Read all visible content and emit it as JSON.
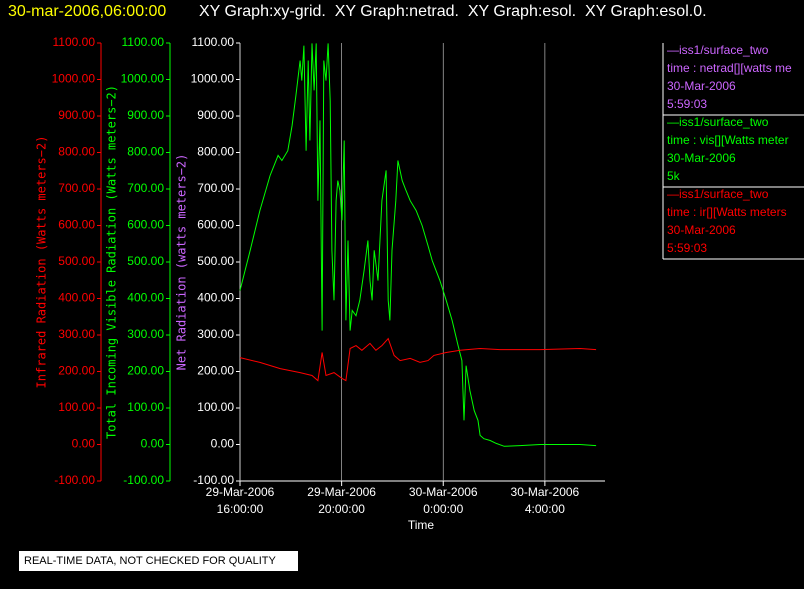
{
  "chart_data": {
    "type": "line",
    "title_time": "30-mar-2006,06:00:00",
    "title": "XY Graph:xy-grid.  XY Graph:netrad.  XY Graph:esol.  XY Graph:esol.0.",
    "xlabel": "Time",
    "note": "REAL-TIME DATA, NOT CHECKED FOR QUALITY",
    "grid": true,
    "xlim": [
      "2006-03-29 16:00",
      "2006-03-30 06:22"
    ],
    "xticks": [
      {
        "value": "2006-03-29 16:00",
        "label": [
          "29-Mar-2006",
          "16:00:00"
        ]
      },
      {
        "value": "2006-03-29 20:00",
        "label": [
          "29-Mar-2006",
          "20:00:00"
        ]
      },
      {
        "value": "2006-03-30 00:00",
        "label": [
          "30-Mar-2006",
          "0:00:00"
        ]
      },
      {
        "value": "2006-03-30 04:00",
        "label": [
          "30-Mar-2006",
          "4:00:00"
        ]
      }
    ],
    "y_axes": [
      {
        "label": "Infrared Radiation (Watts meters−2)",
        "color": "#ff0000",
        "tick_color": "#ff0000",
        "ylim": [
          -100,
          1100
        ],
        "yticks": [
          {
            "value": -100,
            "label": "-100.00"
          },
          {
            "value": 0,
            "label": "0.00"
          },
          {
            "value": 100,
            "label": "100.00"
          },
          {
            "value": 200,
            "label": "200.00"
          },
          {
            "value": 300,
            "label": "300.00"
          },
          {
            "value": 400,
            "label": "400.00"
          },
          {
            "value": 500,
            "label": "500.00"
          },
          {
            "value": 600,
            "label": "600.00"
          },
          {
            "value": 700,
            "label": "700.00"
          },
          {
            "value": 800,
            "label": "800.00"
          },
          {
            "value": 900,
            "label": "900.00"
          },
          {
            "value": 1000,
            "label": "1000.00"
          },
          {
            "value": 1100,
            "label": "1100.00"
          }
        ]
      },
      {
        "label": "Total Incoming Visible Radiation (Watts meters−2)",
        "color": "#00ff00",
        "tick_color": "#00ff00",
        "ylim": [
          -100,
          1100
        ],
        "yticks": [
          {
            "value": -100,
            "label": "-100.00"
          },
          {
            "value": 0,
            "label": "0.00"
          },
          {
            "value": 100,
            "label": "100.00"
          },
          {
            "value": 200,
            "label": "200.00"
          },
          {
            "value": 300,
            "label": "300.00"
          },
          {
            "value": 400,
            "label": "400.00"
          },
          {
            "value": 500,
            "label": "500.00"
          },
          {
            "value": 600,
            "label": "600.00"
          },
          {
            "value": 700,
            "label": "700.00"
          },
          {
            "value": 800,
            "label": "800.00"
          },
          {
            "value": 900,
            "label": "900.00"
          },
          {
            "value": 1000,
            "label": "1000.00"
          },
          {
            "value": 1100,
            "label": "1100.00"
          }
        ]
      },
      {
        "label": "Net Radiation (watts meters−2)",
        "color": "#cc66ff",
        "tick_color": "#ffffff",
        "ylim": [
          -100,
          1100
        ],
        "yticks": [
          {
            "value": -100,
            "label": "-100.00"
          },
          {
            "value": 0,
            "label": "0.00"
          },
          {
            "value": 100,
            "label": "100.00"
          },
          {
            "value": 200,
            "label": "200.00"
          },
          {
            "value": 300,
            "label": "300.00"
          },
          {
            "value": 400,
            "label": "400.00"
          },
          {
            "value": 500,
            "label": "500.00"
          },
          {
            "value": 600,
            "label": "600.00"
          },
          {
            "value": 700,
            "label": "700.00"
          },
          {
            "value": 800,
            "label": "800.00"
          },
          {
            "value": 900,
            "label": "900.00"
          },
          {
            "value": 1000,
            "label": "1000.00"
          },
          {
            "value": 1100,
            "label": "1100.00"
          }
        ]
      }
    ],
    "legend": [
      {
        "color": "#cc66ff",
        "lines": [
          "—iss1/surface_two",
          "time : netrad[][watts me",
          "30-Mar-2006",
          "5:59:03"
        ]
      },
      {
        "color": "#00ff00",
        "lines": [
          "—iss1/surface_two",
          "time : vis[][Watts meter",
          "30-Mar-2006",
          "5k"
        ]
      },
      {
        "color": "#ff0000",
        "lines": [
          "—iss1/surface_two",
          "time : ir[][Watts meters",
          "30-Mar-2006",
          "5:59:03"
        ]
      }
    ],
    "series": [
      {
        "color": "#00ff00",
        "x": [
          "2006-03-29 16:00",
          "2006-03-29 16:24",
          "2006-03-29 16:47",
          "2006-03-29 17:11",
          "2006-03-29 17:30",
          "2006-03-29 17:39",
          "2006-03-29 17:53",
          "2006-03-29 18:03",
          "2006-03-29 18:12",
          "2006-03-29 18:22",
          "2006-03-29 18:26",
          "2006-03-29 18:31",
          "2006-03-29 18:36",
          "2006-03-29 18:41",
          "2006-03-29 18:45",
          "2006-03-29 18:50",
          "2006-03-29 18:55",
          "2006-03-29 19:00",
          "2006-03-29 19:04",
          "2006-03-29 19:09",
          "2006-03-29 19:14",
          "2006-03-29 19:18",
          "2006-03-29 19:23",
          "2006-03-29 19:28",
          "2006-03-29 19:33",
          "2006-03-29 19:37",
          "2006-03-29 19:42",
          "2006-03-29 19:47",
          "2006-03-29 19:51",
          "2006-03-29 19:56",
          "2006-03-29 20:01",
          "2006-03-29 20:06",
          "2006-03-29 20:10",
          "2006-03-29 20:15",
          "2006-03-29 20:20",
          "2006-03-29 20:25",
          "2006-03-29 20:34",
          "2006-03-29 20:43",
          "2006-03-29 20:53",
          "2006-03-29 21:02",
          "2006-03-29 21:07",
          "2006-03-29 21:12",
          "2006-03-29 21:17",
          "2006-03-29 21:26",
          "2006-03-29 21:35",
          "2006-03-29 21:45",
          "2006-03-29 21:50",
          "2006-03-29 21:54",
          "2006-03-29 21:59",
          "2006-03-29 22:08",
          "2006-03-29 22:13",
          "2006-03-29 22:23",
          "2006-03-29 22:32",
          "2006-03-29 22:42",
          "2006-03-29 22:56",
          "2006-03-29 23:10",
          "2006-03-29 23:24",
          "2006-03-29 23:34",
          "2006-03-29 23:43",
          "2006-03-29 23:52",
          "2006-03-30 00:07",
          "2006-03-30 00:21",
          "2006-03-30 00:35",
          "2006-03-30 00:44",
          "2006-03-30 00:49",
          "2006-03-30 00:54",
          "2006-03-30 01:03",
          "2006-03-30 01:13",
          "2006-03-30 01:22",
          "2006-03-30 01:27",
          "2006-03-30 01:36",
          "2006-03-30 01:51",
          "2006-03-30 02:05",
          "2006-03-30 02:24",
          "2006-03-30 03:01",
          "2006-03-30 03:49",
          "2006-03-30 04:36",
          "2006-03-30 05:23",
          "2006-03-30 06:01"
        ],
        "values": [
          422,
          532,
          641,
          737,
          792,
          778,
          805,
          874,
          956,
          1052,
          997,
          1093,
          805,
          1052,
          833,
          1099,
          970,
          1099,
          668,
          888,
          312,
          1052,
          997,
          1099,
          942,
          532,
          395,
          668,
          723,
          696,
          614,
          833,
          340,
          559,
          312,
          367,
          353,
          395,
          477,
          559,
          449,
          395,
          532,
          449,
          668,
          751,
          395,
          340,
          532,
          668,
          778,
          723,
          696,
          668,
          641,
          600,
          545,
          504,
          477,
          449,
          395,
          340,
          271,
          230,
          66,
          216,
          148,
          93,
          66,
          25,
          16,
          11,
          3,
          -5,
          -3,
          0,
          0,
          0,
          -3
        ]
      },
      {
        "color": "#ff0000",
        "x": [
          "2006-03-29 16:00",
          "2006-03-29 16:47",
          "2006-03-29 17:35",
          "2006-03-29 18:22",
          "2006-03-29 18:50",
          "2006-03-29 19:04",
          "2006-03-29 19:14",
          "2006-03-29 19:23",
          "2006-03-29 19:42",
          "2006-03-29 20:01",
          "2006-03-29 20:10",
          "2006-03-29 20:20",
          "2006-03-29 20:34",
          "2006-03-29 20:48",
          "2006-03-29 21:07",
          "2006-03-29 21:21",
          "2006-03-29 21:35",
          "2006-03-29 21:50",
          "2006-03-29 22:04",
          "2006-03-29 22:18",
          "2006-03-29 22:42",
          "2006-03-29 23:05",
          "2006-03-29 23:24",
          "2006-03-29 23:38",
          "2006-03-30 00:07",
          "2006-03-30 00:40",
          "2006-03-30 01:27",
          "2006-03-30 02:14",
          "2006-03-30 03:49",
          "2006-03-30 05:23",
          "2006-03-30 06:01"
        ],
        "values": [
          238,
          225,
          208,
          197,
          189,
          175,
          252,
          189,
          197,
          181,
          175,
          263,
          271,
          258,
          277,
          258,
          271,
          290,
          244,
          230,
          236,
          225,
          230,
          244,
          252,
          258,
          263,
          260,
          260,
          263,
          260
        ]
      }
    ]
  }
}
